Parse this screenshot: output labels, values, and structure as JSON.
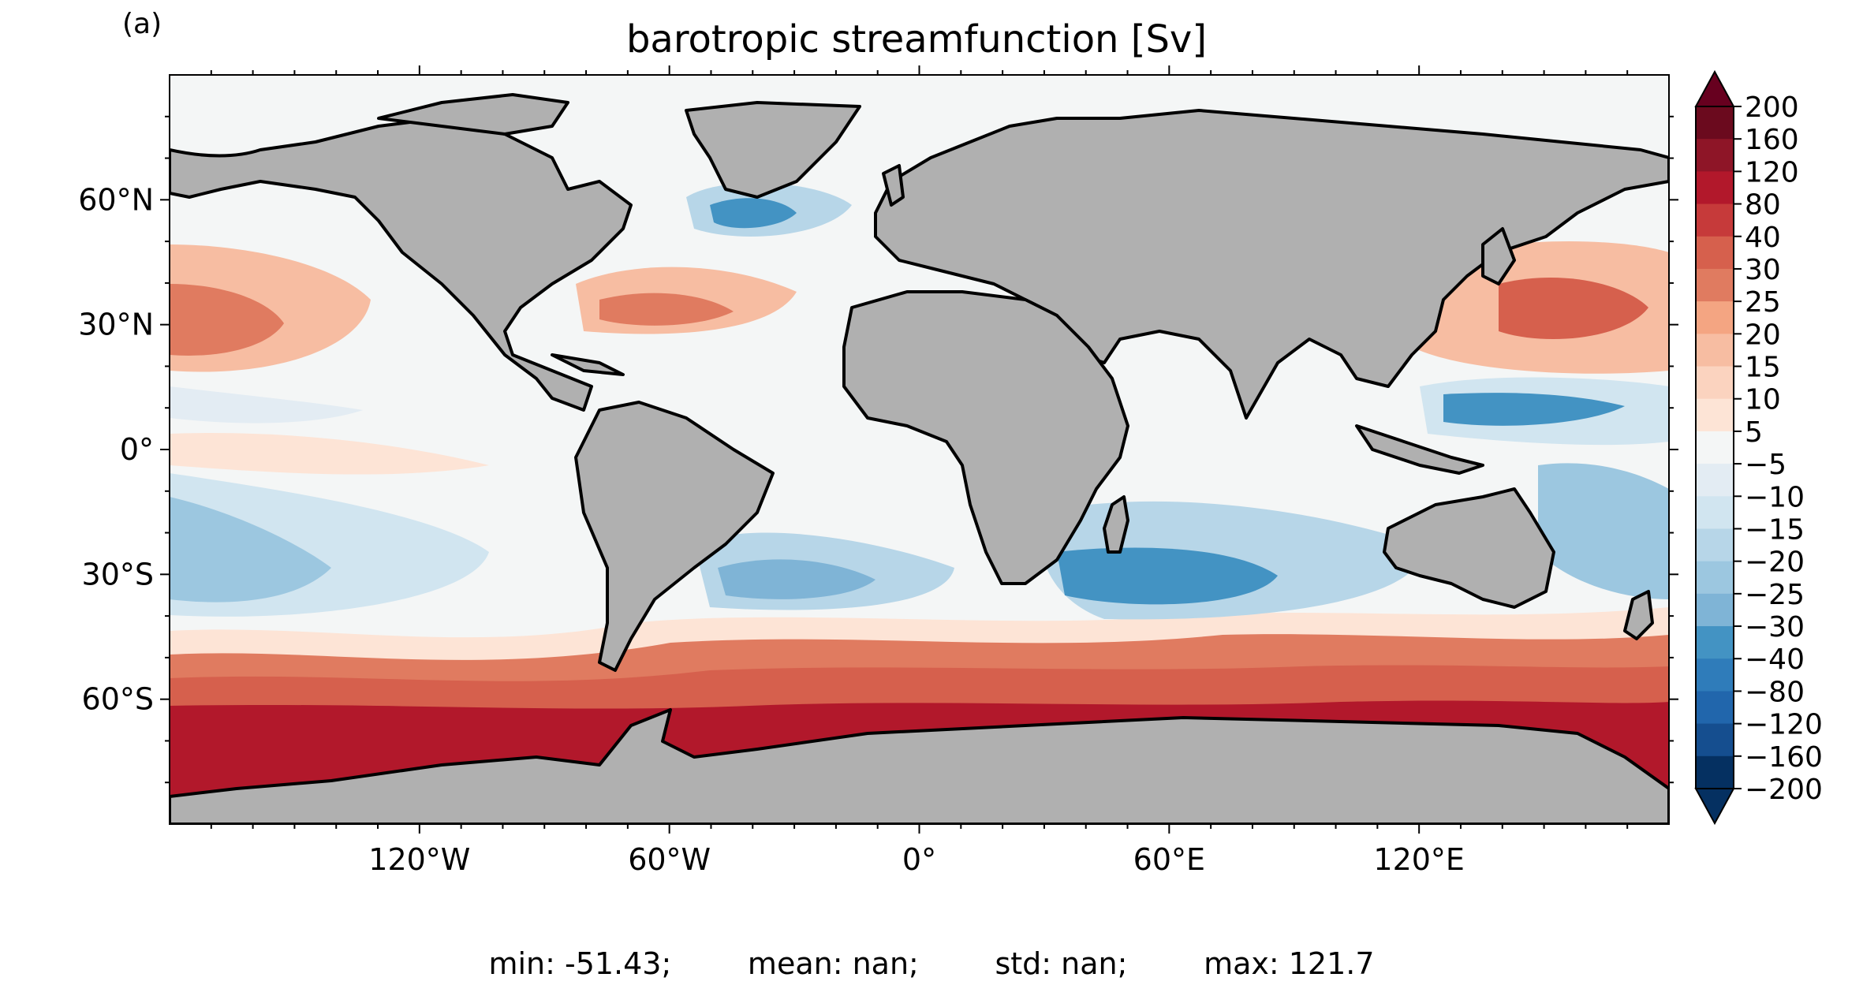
{
  "panel_label": "(a)",
  "title": "barotropic streamfunction [Sv]",
  "map": {
    "projection": "PlateCarree",
    "land_color": "#b0b0b0",
    "ocean_background": "#f4f6f6",
    "coastline_color": "#000000",
    "lon_ticks": [
      {
        "lon": -120,
        "label": "120°W"
      },
      {
        "lon": -60,
        "label": "60°W"
      },
      {
        "lon": 0,
        "label": "0°"
      },
      {
        "lon": 60,
        "label": "60°E"
      },
      {
        "lon": 120,
        "label": "120°E"
      }
    ],
    "lat_ticks": [
      {
        "lat": 60,
        "label": "60°N"
      },
      {
        "lat": 30,
        "label": "30°N"
      },
      {
        "lat": 0,
        "label": "0°"
      },
      {
        "lat": -30,
        "label": "30°S"
      },
      {
        "lat": -60,
        "label": "60°S"
      }
    ],
    "lon_range": [
      -180,
      180
    ],
    "lat_range": [
      -90,
      90
    ]
  },
  "colorbar": {
    "extend": "both",
    "levels": [
      "200",
      "160",
      "120",
      "80",
      "40",
      "30",
      "25",
      "20",
      "15",
      "10",
      "5",
      "−5",
      "−10",
      "−15",
      "−20",
      "−25",
      "−30",
      "−40",
      "−80",
      "−120",
      "−160",
      "−200"
    ],
    "colors": [
      "#6b0a1e",
      "#8e1527",
      "#b2182b",
      "#c63a3a",
      "#d6604d",
      "#e07b60",
      "#f4a582",
      "#f7bda2",
      "#fbd3bf",
      "#fde4d6",
      "#f4f6f6",
      "#e3ecf3",
      "#d1e5f0",
      "#b7d6e8",
      "#9cc7e0",
      "#7fb4d6",
      "#4393c3",
      "#2f7cba",
      "#2166ac",
      "#154e8f",
      "#053061"
    ],
    "extend_top_color": "#67001f",
    "extend_bottom_color": "#053061"
  },
  "stats": {
    "min": "min: -51.43;",
    "mean": "mean: nan;",
    "std": "std: nan;",
    "max": "max: 121.7"
  }
}
